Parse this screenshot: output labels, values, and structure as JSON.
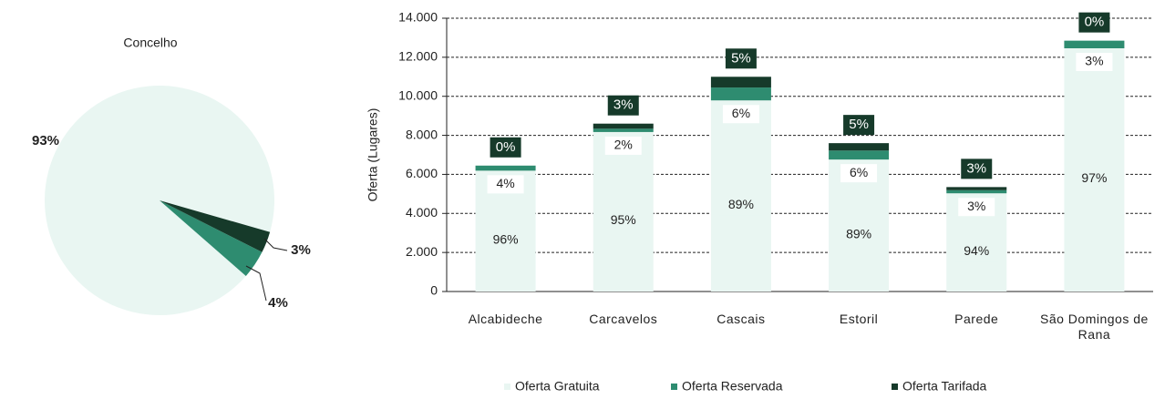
{
  "chart_data": [
    {
      "type": "pie",
      "title": "Concelho",
      "values": [
        93,
        4,
        3
      ],
      "value_labels": [
        "93%",
        "4%",
        "3%"
      ],
      "colors": [
        "#e9f6f2",
        "#2e8c70",
        "#163a2a"
      ]
    },
    {
      "type": "stacked_bar",
      "y_label": "Oferta (Lugares)",
      "categories": [
        "Alcabideche",
        "Carcavelos",
        "Cascais",
        "Estoril",
        "Parede",
        "São Domingos de Rana"
      ],
      "series": [
        {
          "name": "Oferta Gratuita",
          "color": "#e9f6f2",
          "values": [
            6190,
            8170,
            9790,
            6760,
            5030,
            12460
          ],
          "share_labels": [
            "96%",
            "95%",
            "89%",
            "89%",
            "94%",
            "97%"
          ]
        },
        {
          "name": "Oferta Reservada",
          "color": "#2e8c70",
          "values": [
            260,
            170,
            660,
            460,
            160,
            390
          ],
          "share_labels": [
            "4%",
            "2%",
            "6%",
            "6%",
            "3%",
            "3%"
          ]
        },
        {
          "name": "Oferta Tarifada",
          "color": "#163a2a",
          "values": [
            0,
            260,
            550,
            380,
            160,
            0
          ],
          "share_labels": [
            "0%",
            "3%",
            "5%",
            "5%",
            "3%",
            "0%"
          ]
        }
      ],
      "ylim": [
        0,
        14000
      ],
      "yticks": [
        0,
        {
          "value": 2000,
          "label": "2.000"
        },
        {
          "value": 4000,
          "label": "4.000"
        },
        {
          "value": 6000,
          "label": "6.000"
        },
        {
          "value": 8000,
          "label": "8.000"
        },
        {
          "value": 10000,
          "label": "10.000"
        },
        {
          "value": 12000,
          "label": "12.000"
        },
        {
          "value": 14000,
          "label": "14.000"
        }
      ],
      "grid": true,
      "legend": "bottom"
    }
  ]
}
